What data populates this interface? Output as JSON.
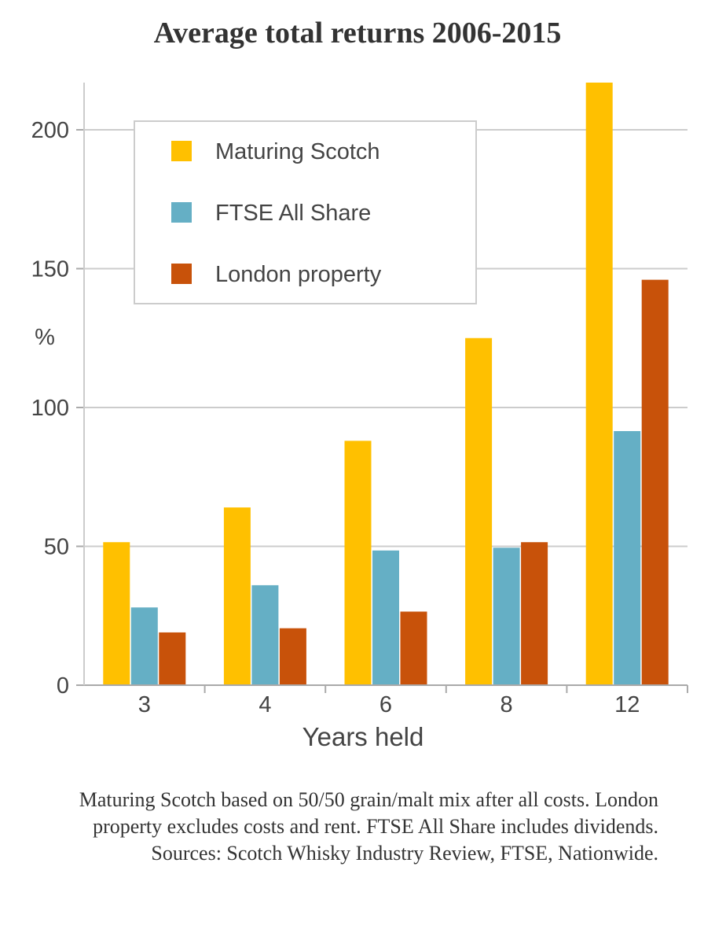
{
  "title": "Average total returns 2006-2015",
  "note": "Maturing Scotch based on 50/50 grain/malt mix after all costs. London property excludes costs and rent. FTSE All Share includes dividends. Sources: Scotch Whisky Industry Review, FTSE, Nationwide.",
  "chart_data": {
    "type": "bar",
    "xlabel": "Years held",
    "ylabel": "%",
    "categories": [
      "3",
      "4",
      "6",
      "8",
      "12"
    ],
    "ylim": [
      0,
      217
    ],
    "yticks": [
      0,
      50,
      100,
      150,
      200
    ],
    "grid": true,
    "legend_position": "top-left",
    "series": [
      {
        "name": "Maturing Scotch",
        "color": "#FFC000",
        "values": [
          51.5,
          64,
          88,
          125,
          217
        ]
      },
      {
        "name": "FTSE All Share",
        "color": "#65AFC5",
        "values": [
          28,
          36,
          48.5,
          49.5,
          91.5
        ]
      },
      {
        "name": "London property",
        "color": "#C8520A",
        "values": [
          19,
          20.5,
          26.5,
          51.5,
          146
        ]
      }
    ]
  }
}
